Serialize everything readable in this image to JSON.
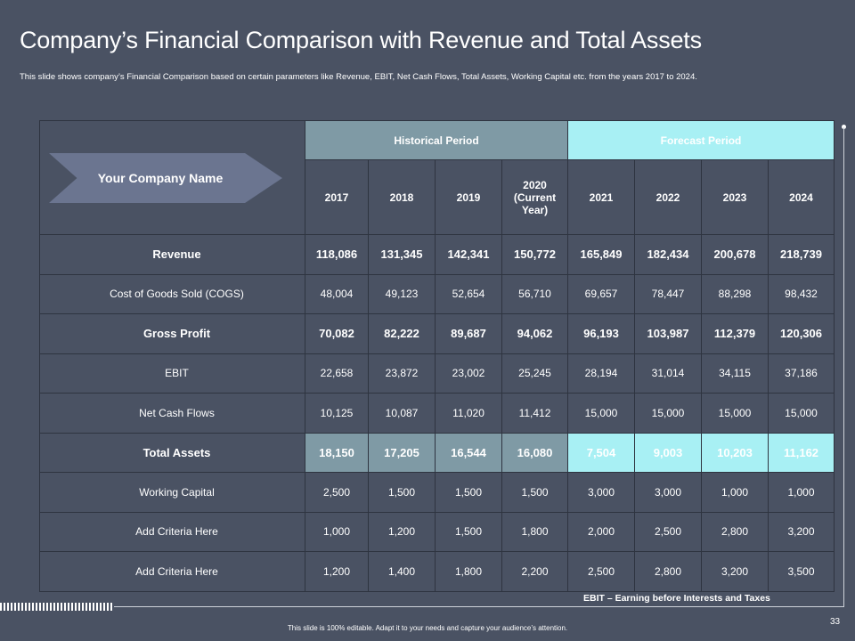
{
  "title": "Company’s Financial Comparison with Revenue and Total Assets",
  "subtitle": "This slide shows company’s Financial Comparison based on certain parameters like Revenue, EBIT,  Net Cash Flows, Total Assets, Working Capital etc. from the years 2017 to 2024.",
  "company_label": "Your Company Name",
  "headers": {
    "historical": "Historical Period",
    "forecast": "Forecast Period",
    "years": [
      "2017",
      "2018",
      "2019",
      "2020 (Current Year)",
      "2021",
      "2022",
      "2023",
      "2024"
    ]
  },
  "rows": [
    {
      "label": "Revenue",
      "values": [
        "118,086",
        "131,345",
        "142,341",
        "150,772",
        "165,849",
        "182,434",
        "200,678",
        "218,739"
      ]
    },
    {
      "label": "Cost of Goods Sold (COGS)",
      "values": [
        "48,004",
        "49,123",
        "52,654",
        "56,710",
        "69,657",
        "78,447",
        "88,298",
        "98,432"
      ]
    },
    {
      "label": "Gross Profit",
      "values": [
        "70,082",
        "82,222",
        "89,687",
        "94,062",
        "96,193",
        "103,987",
        "112,379",
        "120,306"
      ]
    },
    {
      "label": "EBIT",
      "values": [
        "22,658",
        "23,872",
        "23,002",
        "25,245",
        "28,194",
        "31,014",
        "34,115",
        "37,186"
      ]
    },
    {
      "label": "Net Cash Flows",
      "values": [
        "10,125",
        "10,087",
        "11,020",
        "11,412",
        "15,000",
        "15,000",
        "15,000",
        "15,000"
      ]
    },
    {
      "label": "Total Assets",
      "values": [
        "18,150",
        "17,205",
        "16,544",
        "16,080",
        "7,504",
        "9,003",
        "10,203",
        "11,162"
      ]
    },
    {
      "label": "Working Capital",
      "values": [
        "2,500",
        "1,500",
        "1,500",
        "1,500",
        "3,000",
        "3,000",
        "1,000",
        "1,000"
      ]
    },
    {
      "label": "Add Criteria Here",
      "values": [
        "1,000",
        "1,200",
        "1,500",
        "1,800",
        "2,000",
        "2,500",
        "2,800",
        "3,200"
      ]
    },
    {
      "label": "Add Criteria Here",
      "values": [
        "1,200",
        "1,400",
        "1,800",
        "2,200",
        "2,500",
        "2,800",
        "3,200",
        "3,500"
      ]
    }
  ],
  "note": "EBIT – Earning before Interests and Taxes",
  "page_number": "33",
  "footer": "This slide is 100% editable. Adapt it to your needs and capture your audience’s attention."
}
